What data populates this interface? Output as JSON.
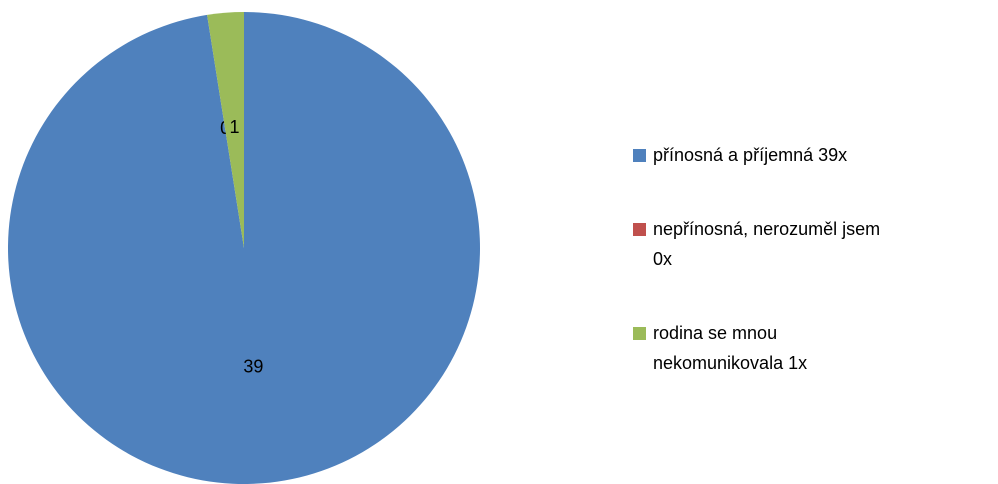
{
  "chart_data": {
    "type": "pie",
    "categories": [
      "přínosná a příjemná 39x",
      "nepřínosná, nerozuměl jsem 0x",
      "rodina se mnou nekomunikovala 1x"
    ],
    "values": [
      39,
      0,
      1
    ],
    "colors": [
      "#4f81bd",
      "#c0504d",
      "#9bbb59"
    ],
    "legend": "right"
  }
}
